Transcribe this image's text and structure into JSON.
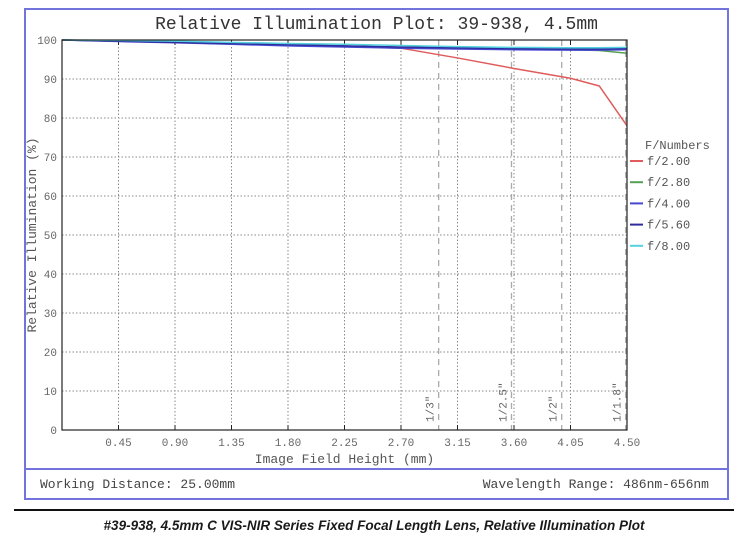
{
  "caption": "#39-938, 4.5mm C VIS-NIR Series Fixed Focal Length Lens, Relative Illumination Plot",
  "footer": {
    "working_distance": "Working Distance: 25.00mm",
    "wavelength_range": "Wavelength Range: 486nm-656nm"
  },
  "colors": {
    "frame_blue": "#7373dd",
    "plot_border": "#222222",
    "grid_dotted": "#8a8a8a",
    "sensor_dashed": "#aaaaaa",
    "tick_text": "#666666",
    "title_text": "#333333"
  },
  "chart_data": {
    "type": "line",
    "title": "Relative Illumination Plot: 39-938, 4.5mm",
    "xlabel": "Image Field Height (mm)",
    "ylabel": "Relative Illumination (%)",
    "xlim": [
      0,
      4.5
    ],
    "ylim": [
      0,
      100
    ],
    "grid": true,
    "legend_position": "right",
    "legend_title": "F/Numbers",
    "x_ticks": [
      0.45,
      0.9,
      1.35,
      1.8,
      2.25,
      2.7,
      3.15,
      3.6,
      4.05,
      4.5
    ],
    "x_tick_labels": [
      "0.45",
      "0.90",
      "1.35",
      "1.80",
      "2.25",
      "2.70",
      "3.15",
      "3.60",
      "4.05",
      "4.50"
    ],
    "y_ticks": [
      0,
      10,
      20,
      30,
      40,
      50,
      60,
      70,
      80,
      90,
      100
    ],
    "y_tick_labels": [
      "0",
      "10",
      "20",
      "30",
      "40",
      "50",
      "60",
      "70",
      "80",
      "90",
      "100"
    ],
    "x": [
      0,
      0.45,
      0.9,
      1.35,
      1.8,
      2.25,
      2.7,
      3.15,
      3.6,
      4.05,
      4.28,
      4.5
    ],
    "series": [
      {
        "name": "f/2.00",
        "color": "#e05c5c",
        "values": [
          100,
          99.8,
          99.5,
          99.2,
          98.9,
          98.5,
          97.9,
          95.4,
          92.7,
          90.2,
          88.2,
          78.0
        ]
      },
      {
        "name": "f/2.80",
        "color": "#55a055",
        "values": [
          100,
          99.7,
          99.4,
          99.0,
          98.7,
          98.4,
          98.1,
          97.8,
          97.6,
          97.5,
          97.3,
          96.6
        ]
      },
      {
        "name": "f/4.00",
        "color": "#4747cf",
        "values": [
          100,
          99.6,
          99.3,
          98.9,
          98.5,
          98.2,
          97.9,
          97.7,
          97.5,
          97.4,
          97.4,
          97.5
        ]
      },
      {
        "name": "f/5.60",
        "color": "#2d2d9e",
        "values": [
          100,
          99.7,
          99.4,
          99.1,
          98.8,
          98.5,
          98.2,
          98.0,
          97.8,
          97.7,
          97.7,
          97.8
        ]
      },
      {
        "name": "f/8.00",
        "color": "#53d2de",
        "values": [
          100,
          99.9,
          99.7,
          99.4,
          99.1,
          98.9,
          98.6,
          98.3,
          98.1,
          98.0,
          98.0,
          98.1
        ]
      }
    ],
    "annotations": [
      {
        "label": "1/3\"",
        "x": 3.0
      },
      {
        "label": "1/2.5\"",
        "x": 3.58
      },
      {
        "label": "1/2\"",
        "x": 3.98
      },
      {
        "label": "1/1.8\"",
        "x": 4.49
      }
    ]
  }
}
